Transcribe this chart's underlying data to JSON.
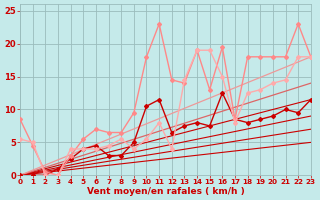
{
  "xlabel": "Vent moyen/en rafales ( km/h )",
  "bg_color": "#c5eaea",
  "grid_color": "#9bbcbc",
  "text_color": "#cc0000",
  "xlim": [
    0,
    23
  ],
  "ylim": [
    0,
    26
  ],
  "xticks": [
    0,
    1,
    2,
    3,
    4,
    5,
    6,
    7,
    8,
    9,
    10,
    11,
    12,
    13,
    14,
    15,
    16,
    17,
    18,
    19,
    20,
    21,
    22,
    23
  ],
  "yticks": [
    0,
    5,
    10,
    15,
    20,
    25
  ],
  "lines": [
    {
      "x": [
        0,
        23
      ],
      "y": [
        0,
        5.0
      ],
      "color": "#cc0000",
      "lw": 0.8,
      "marker": null
    },
    {
      "x": [
        0,
        23
      ],
      "y": [
        0,
        7.0
      ],
      "color": "#cc0000",
      "lw": 0.8,
      "marker": null
    },
    {
      "x": [
        0,
        23
      ],
      "y": [
        0,
        9.0
      ],
      "color": "#cc0000",
      "lw": 0.8,
      "marker": null
    },
    {
      "x": [
        0,
        23
      ],
      "y": [
        0,
        11.5
      ],
      "color": "#cc0000",
      "lw": 0.8,
      "marker": null
    },
    {
      "x": [
        0,
        23
      ],
      "y": [
        0,
        14.0
      ],
      "color": "#dd6666",
      "lw": 0.9,
      "marker": null
    },
    {
      "x": [
        0,
        23
      ],
      "y": [
        0,
        18.0
      ],
      "color": "#ee9999",
      "lw": 0.9,
      "marker": null
    },
    {
      "x": [
        0,
        1,
        2,
        3,
        4,
        5,
        6,
        7,
        8,
        9,
        10,
        11,
        12,
        13,
        14,
        15,
        16,
        17,
        18,
        19,
        20,
        21,
        22,
        23
      ],
      "y": [
        0,
        0,
        0,
        1,
        2.5,
        4,
        4.5,
        3,
        3,
        5,
        10.5,
        11.5,
        6.5,
        7.5,
        8,
        7.5,
        12.5,
        8.5,
        8,
        8.5,
        9,
        10,
        9.5,
        11.5
      ],
      "color": "#cc0000",
      "lw": 1.0,
      "marker": "D",
      "ms": 2.0
    },
    {
      "x": [
        0,
        1,
        2,
        3,
        4,
        5,
        6,
        7,
        8,
        9,
        10,
        11,
        12,
        13,
        14,
        15,
        16,
        17,
        18,
        19,
        20,
        21,
        22,
        23
      ],
      "y": [
        8.5,
        4.5,
        0.5,
        0,
        3,
        5.5,
        7,
        6.5,
        6.5,
        9.5,
        18,
        23,
        14.5,
        14,
        19,
        13,
        19.5,
        8.5,
        18,
        18,
        18,
        18,
        23,
        18
      ],
      "color": "#ff8888",
      "lw": 1.0,
      "marker": "D",
      "ms": 2.0
    },
    {
      "x": [
        0,
        1,
        2,
        3,
        4,
        5,
        6,
        7,
        8,
        9,
        10,
        11,
        12,
        13,
        14,
        15,
        16,
        17,
        18,
        19,
        20,
        21,
        22,
        23
      ],
      "y": [
        5.5,
        5,
        0,
        0,
        4,
        4,
        4,
        4.5,
        5.5,
        4,
        5.5,
        8,
        4,
        14.5,
        19,
        19,
        15,
        8,
        12.5,
        13,
        14,
        14.5,
        18,
        18
      ],
      "color": "#ffaaaa",
      "lw": 1.0,
      "marker": "D",
      "ms": 2.0
    }
  ]
}
